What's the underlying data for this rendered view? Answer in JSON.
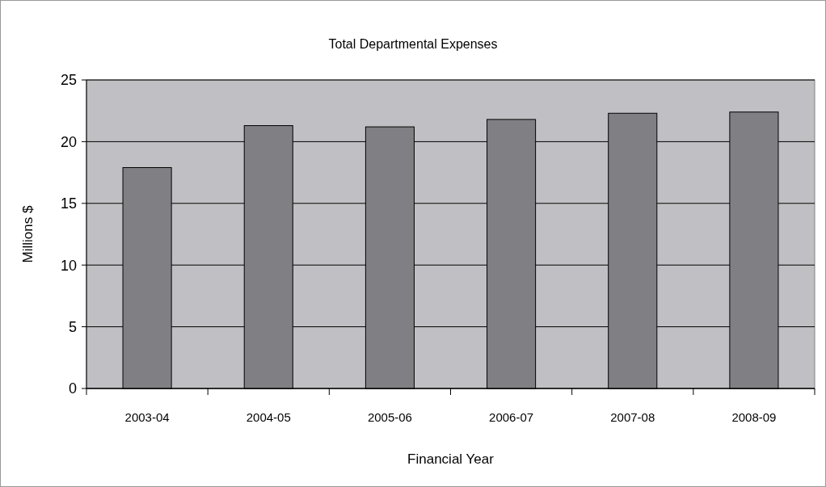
{
  "chart_data": {
    "type": "bar",
    "title": "Total Departmental Expenses",
    "xlabel": "Financial Year",
    "ylabel": "Millions $",
    "categories": [
      "2003-04",
      "2004-05",
      "2005-06",
      "2006-07",
      "2007-08",
      "2008-09"
    ],
    "values": [
      17.9,
      21.3,
      21.2,
      21.8,
      22.3,
      22.4
    ],
    "color": "#808084",
    "ylim": [
      0,
      25
    ],
    "yticks": [
      0,
      5,
      10,
      15,
      20,
      25
    ],
    "grid": "y"
  }
}
